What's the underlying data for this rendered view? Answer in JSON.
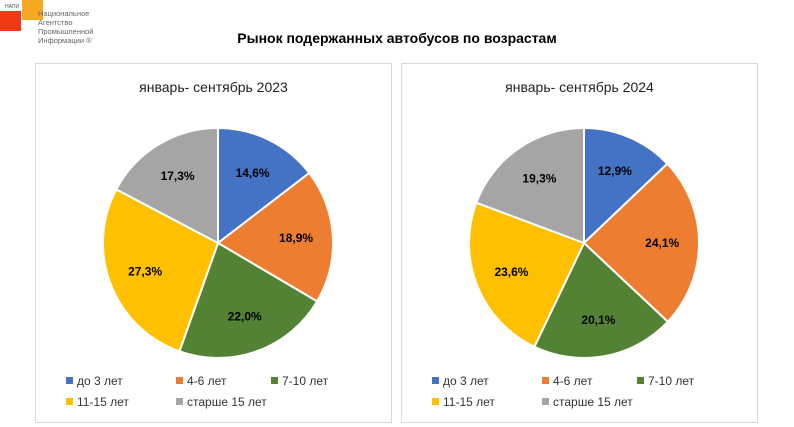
{
  "logo": {
    "small": "НАПИ",
    "line1": "Национальное",
    "line2": "Агентство",
    "line3": "Промышленной",
    "line4": "Информации ®"
  },
  "title": "Рынок подержанных автобусов по возрастам",
  "chart_data": [
    {
      "type": "pie",
      "title": "январь- сентябрь 2023",
      "categories": [
        "до 3 лет",
        "4-6 лет",
        "7-10 лет",
        "11-15 лет",
        "старше 15 лет"
      ],
      "values": [
        14.6,
        18.9,
        22.0,
        27.3,
        17.3
      ],
      "labels": [
        "14,6%",
        "18,9%",
        "22,0%",
        "27,3%",
        "17,3%"
      ],
      "colors": [
        "#4472c4",
        "#ed7d31",
        "#548235",
        "#ffc000",
        "#a5a5a5"
      ],
      "legend": "bottom"
    },
    {
      "type": "pie",
      "title": "январь- сентябрь 2024",
      "categories": [
        "до 3 лет",
        "4-6 лет",
        "7-10 лет",
        "11-15 лет",
        "старше 15 лет"
      ],
      "values": [
        12.9,
        24.1,
        20.1,
        23.6,
        19.3
      ],
      "labels": [
        "12,9%",
        "24,1%",
        "20,1%",
        "23,6%",
        "19,3%"
      ],
      "colors": [
        "#4472c4",
        "#ed7d31",
        "#548235",
        "#ffc000",
        "#a5a5a5"
      ],
      "legend": "bottom"
    }
  ]
}
